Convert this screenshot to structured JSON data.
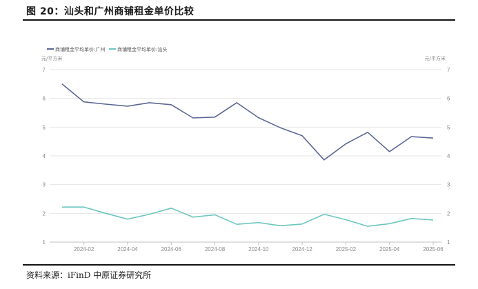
{
  "figure": {
    "title": "图 20：汕头和广州商铺租金单价比较",
    "source": "资料来源：iFinD 中原证券研究所"
  },
  "chart_data": {
    "type": "line",
    "title": "汕头和广州商铺租金单价比较",
    "ylabel_left": "元/平方米",
    "ylabel_right": "元/平方米",
    "ylim": [
      1,
      7
    ],
    "yticks": [
      1,
      2,
      3,
      4,
      5,
      6,
      7
    ],
    "x": [
      "2024-01",
      "2024-02",
      "2024-03",
      "2024-04",
      "2024-05",
      "2024-06",
      "2024-07",
      "2024-08",
      "2024-09",
      "2024-10",
      "2024-11",
      "2024-12",
      "2025-01",
      "2025-02",
      "2025-03",
      "2025-04",
      "2025-05",
      "2025-06"
    ],
    "xtick_labels": [
      "2024-02",
      "2024-04",
      "2024-06",
      "2024-08",
      "2024-10",
      "2024-12",
      "2025-02",
      "2025-04",
      "2025-06"
    ],
    "series": [
      {
        "name": "商铺租金平均单价:广州",
        "color": "#5b6694",
        "values": [
          6.5,
          5.88,
          5.8,
          5.73,
          5.85,
          5.78,
          5.32,
          5.35,
          5.85,
          5.33,
          4.98,
          4.7,
          3.86,
          4.42,
          4.82,
          4.15,
          4.67,
          4.62
        ]
      },
      {
        "name": "商铺租金平均单价:汕头",
        "color": "#6cc6bf",
        "values": [
          2.22,
          2.22,
          2.0,
          1.8,
          1.97,
          2.18,
          1.87,
          1.95,
          1.62,
          1.68,
          1.57,
          1.63,
          1.97,
          1.78,
          1.55,
          1.64,
          1.82,
          1.77
        ]
      }
    ],
    "legend_position": "top-left",
    "grid": true
  }
}
